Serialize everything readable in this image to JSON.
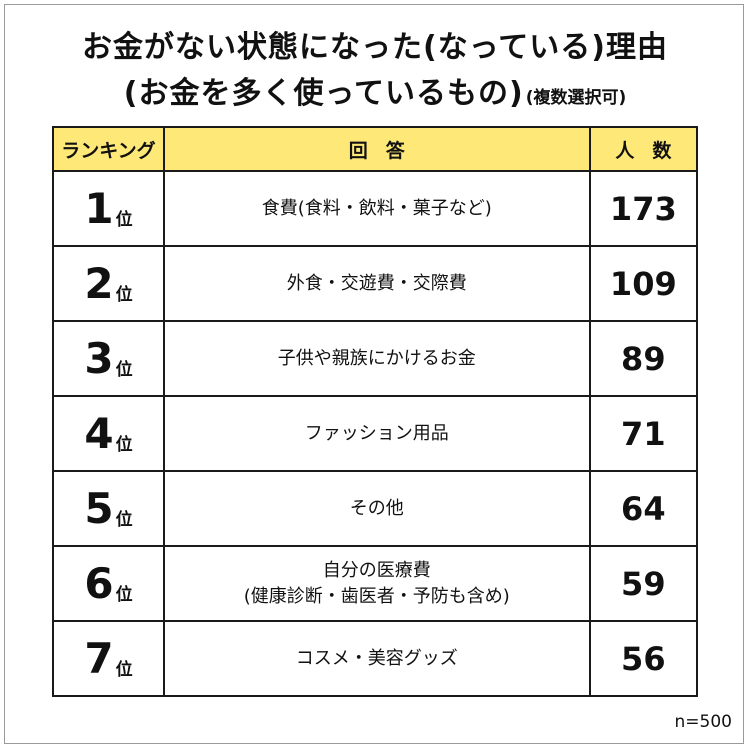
{
  "title_line1": "お金がない状態になった(なっている)理由",
  "title_line2": "(お金を多く使っているもの)",
  "title_note": "(複数選択可)",
  "table": {
    "headers": {
      "rank": "ランキング",
      "answer": "回答",
      "count": "人数"
    },
    "rank_suffix": "位",
    "rows": [
      {
        "rank": "1",
        "answer": "食費(食料・飲料・菓子など)",
        "answer_sub": "",
        "count": "173"
      },
      {
        "rank": "2",
        "answer": "外食・交遊費・交際費",
        "answer_sub": "",
        "count": "109"
      },
      {
        "rank": "3",
        "answer": "子供や親族にかけるお金",
        "answer_sub": "",
        "count": "89"
      },
      {
        "rank": "4",
        "answer": "ファッション用品",
        "answer_sub": "",
        "count": "71"
      },
      {
        "rank": "5",
        "answer": "その他",
        "answer_sub": "",
        "count": "64"
      },
      {
        "rank": "6",
        "answer": "自分の医療費",
        "answer_sub": "(健康診断・歯医者・予防も含め)",
        "count": "59"
      },
      {
        "rank": "7",
        "answer": "コスメ・美容グッズ",
        "answer_sub": "",
        "count": "56"
      }
    ]
  },
  "sample_size": "n=500",
  "colors": {
    "header_bg": "#fde878",
    "border": "#1a1a1a"
  }
}
